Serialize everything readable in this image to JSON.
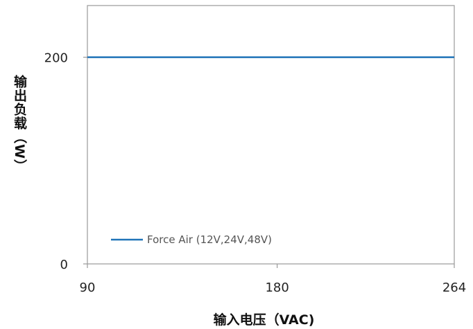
{
  "chart_data": {
    "type": "line",
    "title": "",
    "xlabel": "输入电压（VAC)",
    "ylabel": "输出负载（W）",
    "x": [
      90,
      264
    ],
    "xlim": [
      90,
      264
    ],
    "ylim": [
      0,
      250
    ],
    "xticks": [
      90,
      180,
      264
    ],
    "yticks": [
      0,
      200
    ],
    "grid": false,
    "legend_position": "bottom-left",
    "series": [
      {
        "name": "Force Air (12V,24V,48V)",
        "values": [
          200,
          200
        ],
        "color": "#1f73b8"
      }
    ]
  }
}
